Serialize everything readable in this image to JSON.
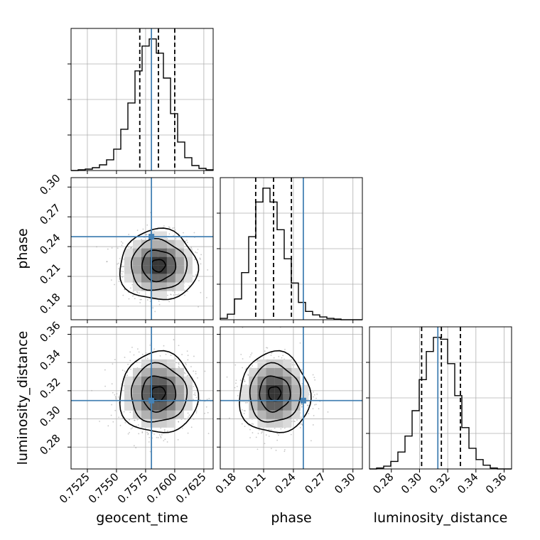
{
  "chart_data": {
    "type": "corner",
    "parameters": [
      "geocent_time",
      "phase",
      "luminosity_distance"
    ],
    "ranges": {
      "geocent_time": [
        0.7511,
        0.7633
      ],
      "phase": [
        0.1663,
        0.3095
      ],
      "luminosity_distance": [
        0.2645,
        0.3653
      ]
    },
    "ticks": {
      "geocent_time": [
        "0.7525",
        "0.7550",
        "0.7575",
        "0.7600",
        "0.7625"
      ],
      "phase": [
        "0.18",
        "0.21",
        "0.24",
        "0.27",
        "0.30"
      ],
      "luminosity_distance": [
        "0.28",
        "0.30",
        "0.32",
        "0.34",
        "0.36"
      ]
    },
    "truths": {
      "geocent_time": 0.758,
      "phase": 0.25,
      "luminosity_distance": 0.313
    },
    "quantiles": {
      "geocent_time": [
        0.757,
        0.7586,
        0.76
      ],
      "phase": [
        0.202,
        0.22,
        0.238
      ],
      "luminosity_distance": [
        0.3015,
        0.3155,
        0.329
      ]
    },
    "posterior": {
      "mean": {
        "geocent_time": 0.7586,
        "phase": 0.221,
        "luminosity_distance": 0.318
      },
      "sd": {
        "geocent_time": 0.00145,
        "phase": 0.0155,
        "luminosity_distance": 0.0125
      }
    },
    "histograms": {
      "geocent_time": [
        0,
        1,
        2,
        4,
        8,
        15,
        30,
        58,
        95,
        140,
        175,
        185,
        165,
        130,
        80,
        40,
        18,
        7,
        3,
        1
      ],
      "phase": [
        2,
        8,
        30,
        68,
        120,
        170,
        190,
        170,
        130,
        88,
        53,
        25,
        12,
        7,
        4,
        2,
        1,
        0,
        0,
        0
      ],
      "luminosity_distance": [
        0,
        1,
        3,
        8,
        18,
        35,
        62,
        95,
        125,
        140,
        138,
        112,
        78,
        44,
        22,
        10,
        4,
        1,
        0,
        0
      ]
    },
    "grid": true,
    "colors": {
      "truth": "#4682b4",
      "hist": "#000000",
      "points": "#9a9a9a",
      "grid": "#b0b0b0"
    }
  }
}
